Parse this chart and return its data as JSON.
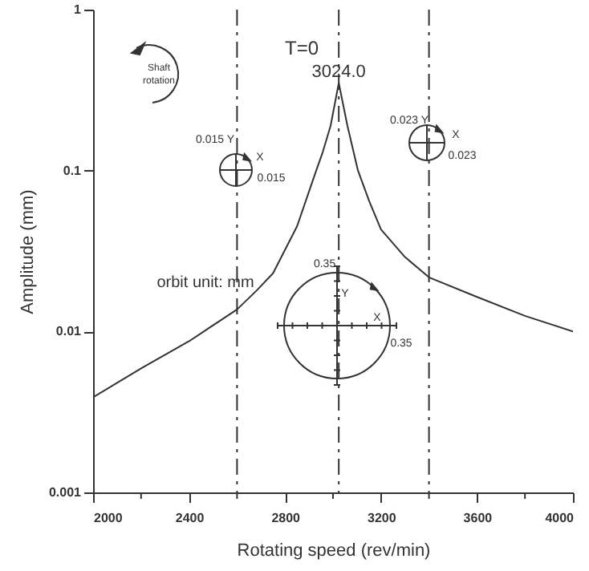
{
  "chart_data": {
    "type": "line",
    "xlabel": "Rotating speed (rev/min)",
    "ylabel": "Amplitude (mm)",
    "x": [
      2000,
      2200,
      2400,
      2600,
      2682,
      2750,
      2850,
      2930,
      2957,
      2990,
      3024,
      3060,
      3104,
      3150,
      3200,
      3300,
      3400,
      3600,
      3800,
      4000
    ],
    "series": [
      {
        "color": "#333333",
        "values": [
          0.0039,
          0.0059,
          0.0087,
          0.0137,
          0.018,
          0.023,
          0.045,
          0.1,
          0.13,
          0.19,
          0.35,
          0.19,
          0.1,
          0.065,
          0.043,
          0.029,
          0.0217,
          0.0164,
          0.0125,
          0.01
        ]
      }
    ],
    "log": "y",
    "xlim": [
      2000,
      4000
    ],
    "ylim": [
      0.001,
      1
    ],
    "xticks": [
      2000,
      {
        "value": 2200,
        "label": null
      },
      2400,
      {
        "value": 2600,
        "label": null
      },
      2800,
      {
        "value": 3000,
        "label": null
      },
      3200,
      {
        "value": 3400,
        "label": null
      },
      3600,
      {
        "value": 3800,
        "label": null
      },
      4000
    ],
    "yticks": [
      0.001,
      0.01,
      0.1,
      1
    ],
    "grid": false,
    "marker": "none",
    "line_style": "solid",
    "ref_lines": [
      {
        "axis": "x",
        "value": 2600,
        "line_style": "dashdot",
        "color": "#333333"
      },
      {
        "axis": "x",
        "value": 3024,
        "label": "3024.0",
        "line_style": "dashdot",
        "color": "#333333"
      },
      {
        "axis": "x",
        "value": 3400,
        "line_style": "dashdot",
        "color": "#333333"
      }
    ],
    "annotations": [
      "T=0",
      "Shaft rotation",
      "0.015 Y",
      "X",
      "0.015",
      "0.023 Y",
      "X",
      "0.023",
      {
        "text": "0.35",
        "x": 3024,
        "y": 0.025
      },
      "Y",
      "X",
      "0.35",
      "orbit unit: mm"
    ]
  }
}
